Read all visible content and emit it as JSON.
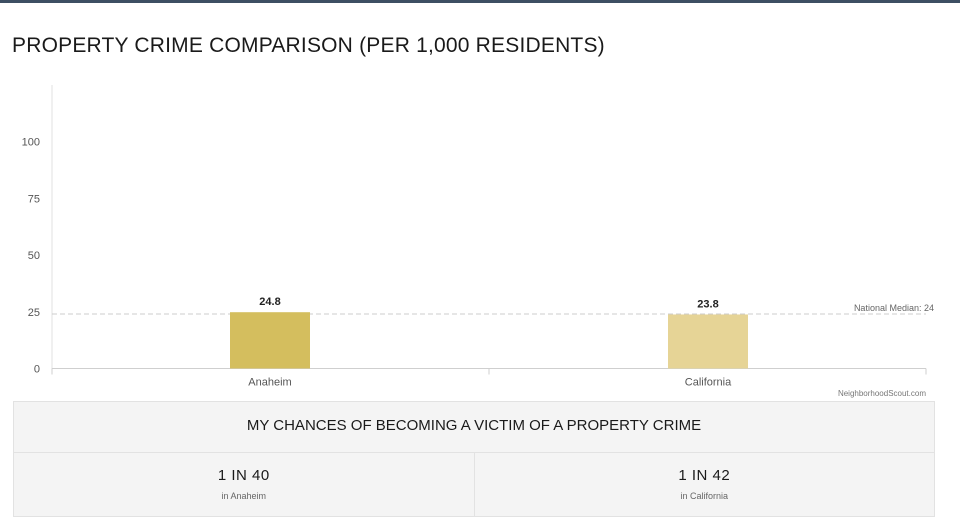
{
  "page": {
    "title": "PROPERTY CRIME COMPARISON (PER 1,000 RESIDENTS)",
    "credit": "NeighborhoodScout.com"
  },
  "colors": {
    "header_bar": "#3d4f63",
    "bar_anaheim": "#d4be5e",
    "bar_california": "#e6d496",
    "median_line": "#cccccc",
    "panel_bg": "#f4f4f4"
  },
  "chart_data": {
    "type": "bar",
    "title": "PROPERTY CRIME COMPARISON (PER 1,000 RESIDENTS)",
    "categories": [
      "Anaheim",
      "California"
    ],
    "values": [
      24.8,
      23.8
    ],
    "data_labels": [
      "24.8",
      "23.8"
    ],
    "yticks": [
      0,
      25,
      50,
      75,
      100
    ],
    "ylim": [
      0,
      125
    ],
    "grid": false,
    "reference_line": {
      "label": "National Median: 24",
      "value": 24
    }
  },
  "chances": {
    "title": "MY CHANCES OF BECOMING A VICTIM OF A PROPERTY CRIME",
    "items": [
      {
        "odds": "1 IN 40",
        "place": "in Anaheim"
      },
      {
        "odds": "1 IN 42",
        "place": "in California"
      }
    ]
  }
}
